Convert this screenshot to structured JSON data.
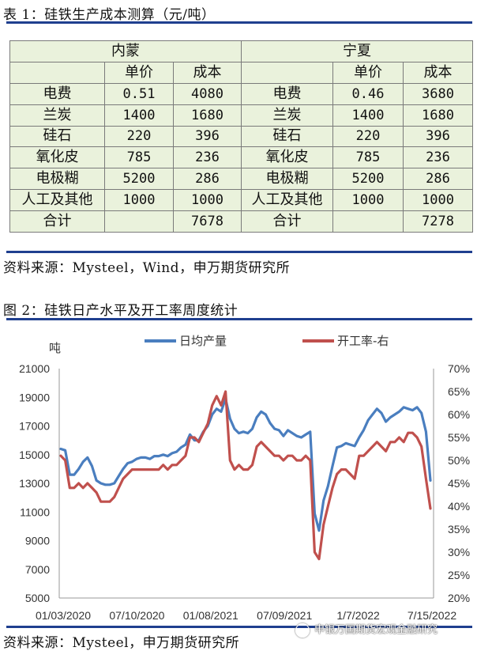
{
  "table_caption": "表 1：硅铁生产成本测算（元/吨）",
  "table": {
    "regions": [
      "内蒙",
      "宁夏"
    ],
    "col_headers": [
      "单价",
      "成本"
    ],
    "rows": [
      [
        "电费",
        "0.51",
        "4080",
        "电费",
        "0.46",
        "3680"
      ],
      [
        "兰炭",
        "1400",
        "1680",
        "兰炭",
        "1400",
        "1680"
      ],
      [
        "硅石",
        "220",
        "396",
        "硅石",
        "220",
        "396"
      ],
      [
        "氧化皮",
        "785",
        "236",
        "氧化皮",
        "785",
        "236"
      ],
      [
        "电极糊",
        "5200",
        "286",
        "电极糊",
        "5200",
        "286"
      ],
      [
        "人工及其他",
        "1000",
        "1000",
        "人工及其他",
        "1000",
        "1000"
      ],
      [
        "合计",
        "",
        "7678",
        "合计",
        "",
        "7278"
      ]
    ]
  },
  "source1": "资料来源：Mysteel，Wind，申万期货研究所",
  "figure_caption": "图 2：硅铁日产水平及开工率周度统计",
  "source2": "资料来源：Mysteel，申万期货研究所",
  "watermark": "申银万国期货宏观金融研究",
  "colors": {
    "rule": "#1f3f8f",
    "table_bg": "#eaf2dc",
    "series1": "#4a7ebf",
    "series2": "#c0504d"
  },
  "chart_data": {
    "type": "line",
    "ylabel": "吨",
    "y_ticks": [
      "21000",
      "19000",
      "17000",
      "15000",
      "13000",
      "11000",
      "9000",
      "7000",
      "5000"
    ],
    "y2_ticks": [
      "70%",
      "65%",
      "60%",
      "55%",
      "50%",
      "45%",
      "40%",
      "35%",
      "30%",
      "25%",
      "20%"
    ],
    "ylim": [
      5000,
      21000
    ],
    "y2lim": [
      0.2,
      0.7
    ],
    "x_ticks": [
      "01/03/2020",
      "07/10/2020",
      "01/08/2021",
      "07/09/2021",
      "1/7/2022",
      "7/15/2022"
    ],
    "legend_position": "top",
    "grid": false,
    "series": [
      {
        "name": "日均产量",
        "axis": "left",
        "values": [
          15400,
          15300,
          13600,
          13600,
          14000,
          14500,
          14800,
          14200,
          13200,
          13000,
          12900,
          12900,
          13000,
          13500,
          14000,
          14400,
          14500,
          14700,
          14800,
          14800,
          14700,
          14900,
          14900,
          15000,
          14900,
          15100,
          15200,
          15500,
          15700,
          16400,
          16000,
          16000,
          16600,
          17000,
          17800,
          18200,
          18000,
          18900,
          17500,
          16800,
          16500,
          16600,
          16500,
          16800,
          17600,
          18000,
          17800,
          17200,
          16800,
          16700,
          16300,
          16700,
          16500,
          16300,
          16200,
          16400,
          16600,
          10900,
          9700,
          11800,
          12800,
          14200,
          15500,
          15600,
          15800,
          15700,
          15600,
          16200,
          16700,
          17400,
          17800,
          18200,
          17900,
          17300,
          17600,
          17800,
          18000,
          18300,
          18200,
          18100,
          18300,
          17900,
          16600,
          13200
        ]
      },
      {
        "name": "开工率-右",
        "axis": "right",
        "values": [
          0.51,
          0.5,
          0.44,
          0.44,
          0.45,
          0.44,
          0.45,
          0.44,
          0.43,
          0.41,
          0.41,
          0.41,
          0.42,
          0.44,
          0.46,
          0.47,
          0.48,
          0.48,
          0.48,
          0.48,
          0.48,
          0.48,
          0.48,
          0.49,
          0.48,
          0.49,
          0.49,
          0.5,
          0.51,
          0.55,
          0.55,
          0.54,
          0.56,
          0.58,
          0.62,
          0.64,
          0.62,
          0.65,
          0.5,
          0.48,
          0.49,
          0.48,
          0.48,
          0.49,
          0.53,
          0.54,
          0.53,
          0.52,
          0.51,
          0.51,
          0.5,
          0.51,
          0.51,
          0.5,
          0.5,
          0.51,
          0.5,
          0.3,
          0.285,
          0.36,
          0.4,
          0.44,
          0.47,
          0.48,
          0.48,
          0.47,
          0.46,
          0.51,
          0.51,
          0.52,
          0.53,
          0.54,
          0.53,
          0.52,
          0.54,
          0.54,
          0.55,
          0.54,
          0.56,
          0.56,
          0.55,
          0.53,
          0.46,
          0.395
        ]
      }
    ]
  }
}
